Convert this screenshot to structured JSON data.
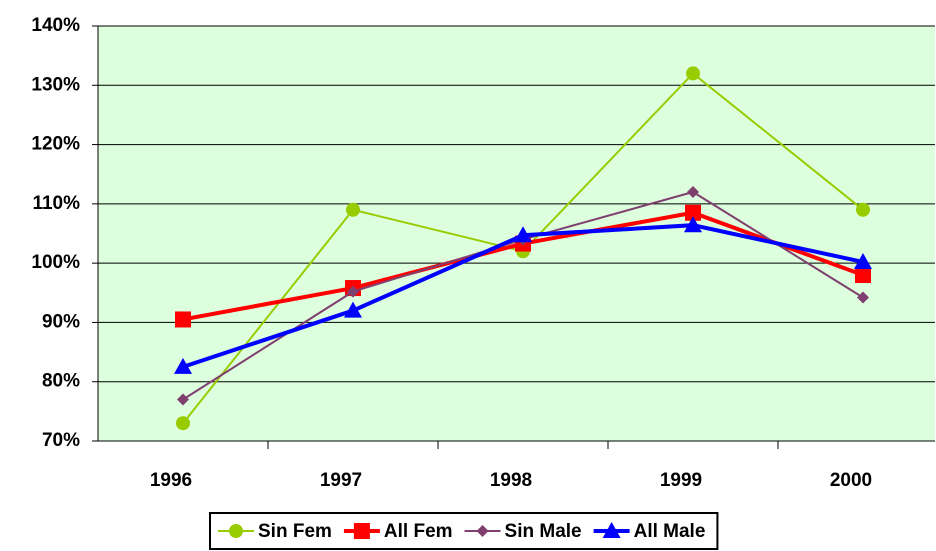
{
  "chart_data": {
    "type": "line",
    "categories": [
      "1996",
      "1997",
      "1998",
      "1999",
      "2000"
    ],
    "series": [
      {
        "name": "Sin Fem",
        "color": "#99cc00",
        "marker": "circle",
        "values": [
          73,
          109,
          102,
          132,
          109
        ]
      },
      {
        "name": "All Fem",
        "color": "#ff0000",
        "marker": "square",
        "values": [
          90.5,
          95.8,
          103.3,
          108.5,
          98
        ]
      },
      {
        "name": "Sin Male",
        "color": "#7f3f6f",
        "marker": "diamond",
        "values": [
          77,
          95.2,
          104,
          112,
          94.2
        ]
      },
      {
        "name": "All Male",
        "color": "#0000ff",
        "marker": "triangle",
        "values": [
          82.5,
          92,
          104.7,
          106.4,
          100.2
        ]
      }
    ],
    "ylim": [
      70,
      140
    ],
    "yticks": [
      {
        "value": 70,
        "label": "70%"
      },
      {
        "value": 80,
        "label": "80%"
      },
      {
        "value": 90,
        "label": "90%"
      },
      {
        "value": 100,
        "label": "100%"
      },
      {
        "value": 110,
        "label": "110%"
      },
      {
        "value": 120,
        "label": "120%"
      },
      {
        "value": 130,
        "label": "130%"
      },
      {
        "value": 140,
        "label": "140%"
      }
    ],
    "grid": true,
    "legend": "bottom",
    "background": "#ddffdd"
  }
}
